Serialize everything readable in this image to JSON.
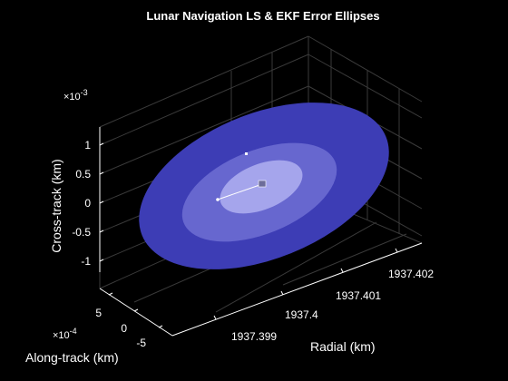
{
  "chart_data": {
    "type": "scatter",
    "title": "Lunar Navigation LS & EKF Error Ellipses",
    "xlabel": "Radial (km)",
    "ylabel": "Along-track (km)",
    "zlabel": "Cross-track (km)",
    "y_exponent_label": "×10^-4",
    "z_exponent_label": "×10^-3",
    "x_ticks": [
      "1937.399",
      "1937.4",
      "1937.401",
      "1937.402"
    ],
    "y_ticks": [
      "5",
      "0",
      "-5"
    ],
    "z_ticks": [
      "1",
      "0.5",
      "0",
      "-0.5",
      "-1"
    ],
    "grid": true,
    "colors": {
      "background": "#000000",
      "axes": "#ffffff",
      "grid": "#3a3a3a",
      "ellipse_outer": "#3d3db5",
      "ellipse_middle": "#6767cf",
      "ellipse_inner": "#a5a5ec",
      "marker": "#ffffff"
    },
    "ellipses": [
      {
        "level": "outer"
      },
      {
        "level": "middle"
      },
      {
        "level": "inner"
      }
    ],
    "points": [
      {
        "marker": "square-small"
      },
      {
        "marker": "dot"
      },
      {
        "marker": "square"
      }
    ]
  }
}
